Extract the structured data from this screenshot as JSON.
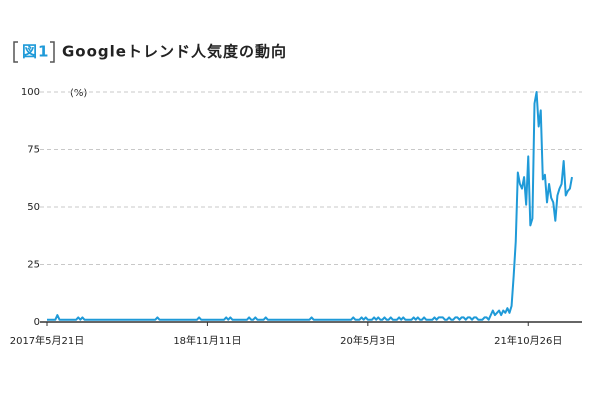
{
  "chart_data": {
    "type": "line",
    "figure_label": "図1",
    "title": "Googleトレンド人気度の動向",
    "y_unit": "(%)",
    "color": "#1f9ad8",
    "values": [
      1,
      1,
      1,
      1,
      1,
      3,
      1,
      1,
      1,
      1,
      1,
      1,
      1,
      1,
      1,
      2,
      1,
      2,
      1,
      1,
      1,
      1,
      1,
      1,
      1,
      1,
      1,
      1,
      1,
      1,
      1,
      1,
      1,
      1,
      1,
      1,
      1,
      1,
      1,
      1,
      1,
      1,
      1,
      1,
      1,
      1,
      1,
      1,
      1,
      1,
      1,
      1,
      1,
      2,
      1,
      1,
      1,
      1,
      1,
      1,
      1,
      1,
      1,
      1,
      1,
      1,
      1,
      1,
      1,
      1,
      1,
      1,
      1,
      2,
      1,
      1,
      1,
      1,
      1,
      1,
      1,
      1,
      1,
      1,
      1,
      1,
      2,
      1,
      2,
      1,
      1,
      1,
      1,
      1,
      1,
      1,
      1,
      2,
      1,
      1,
      2,
      1,
      1,
      1,
      1,
      2,
      1,
      1,
      1,
      1,
      1,
      1,
      1,
      1,
      1,
      1,
      1,
      1,
      1,
      1,
      1,
      1,
      1,
      1,
      1,
      1,
      1,
      2,
      1,
      1,
      1,
      1,
      1,
      1,
      1,
      1,
      1,
      1,
      1,
      1,
      1,
      1,
      1,
      1,
      1,
      1,
      1,
      2,
      1,
      1,
      1,
      2,
      1,
      2,
      1,
      1,
      1,
      2,
      1,
      2,
      1,
      1,
      2,
      1,
      1,
      2,
      1,
      1,
      1,
      2,
      1,
      2,
      1,
      1,
      1,
      1,
      2,
      1,
      2,
      1,
      1,
      2,
      1,
      1,
      1,
      1,
      2,
      1,
      2,
      2,
      2,
      1,
      1,
      2,
      1,
      1,
      2,
      2,
      1,
      2,
      2,
      1,
      2,
      2,
      1,
      2,
      2,
      1,
      1,
      1,
      2,
      2,
      1,
      3,
      5,
      3,
      4,
      5,
      3,
      5,
      4,
      6,
      4,
      7,
      20,
      35,
      65,
      60,
      58,
      63,
      51,
      72,
      42,
      45,
      95,
      100,
      85,
      92,
      62,
      64,
      52,
      60,
      54,
      52,
      44,
      55,
      58,
      60,
      70,
      55,
      57,
      58,
      63
    ],
    "xlim": [
      0,
      252
    ],
    "xticks": [
      {
        "value": 0,
        "label": "2017年5月21日"
      },
      {
        "value": 77,
        "label": "18年11月11日"
      },
      {
        "value": 154,
        "label": "20年5月3日"
      },
      {
        "value": 231,
        "label": "21年10月26日"
      }
    ],
    "ylim": [
      0,
      100
    ],
    "yticks": [
      0,
      25,
      50,
      75,
      100
    ],
    "grid": true
  }
}
